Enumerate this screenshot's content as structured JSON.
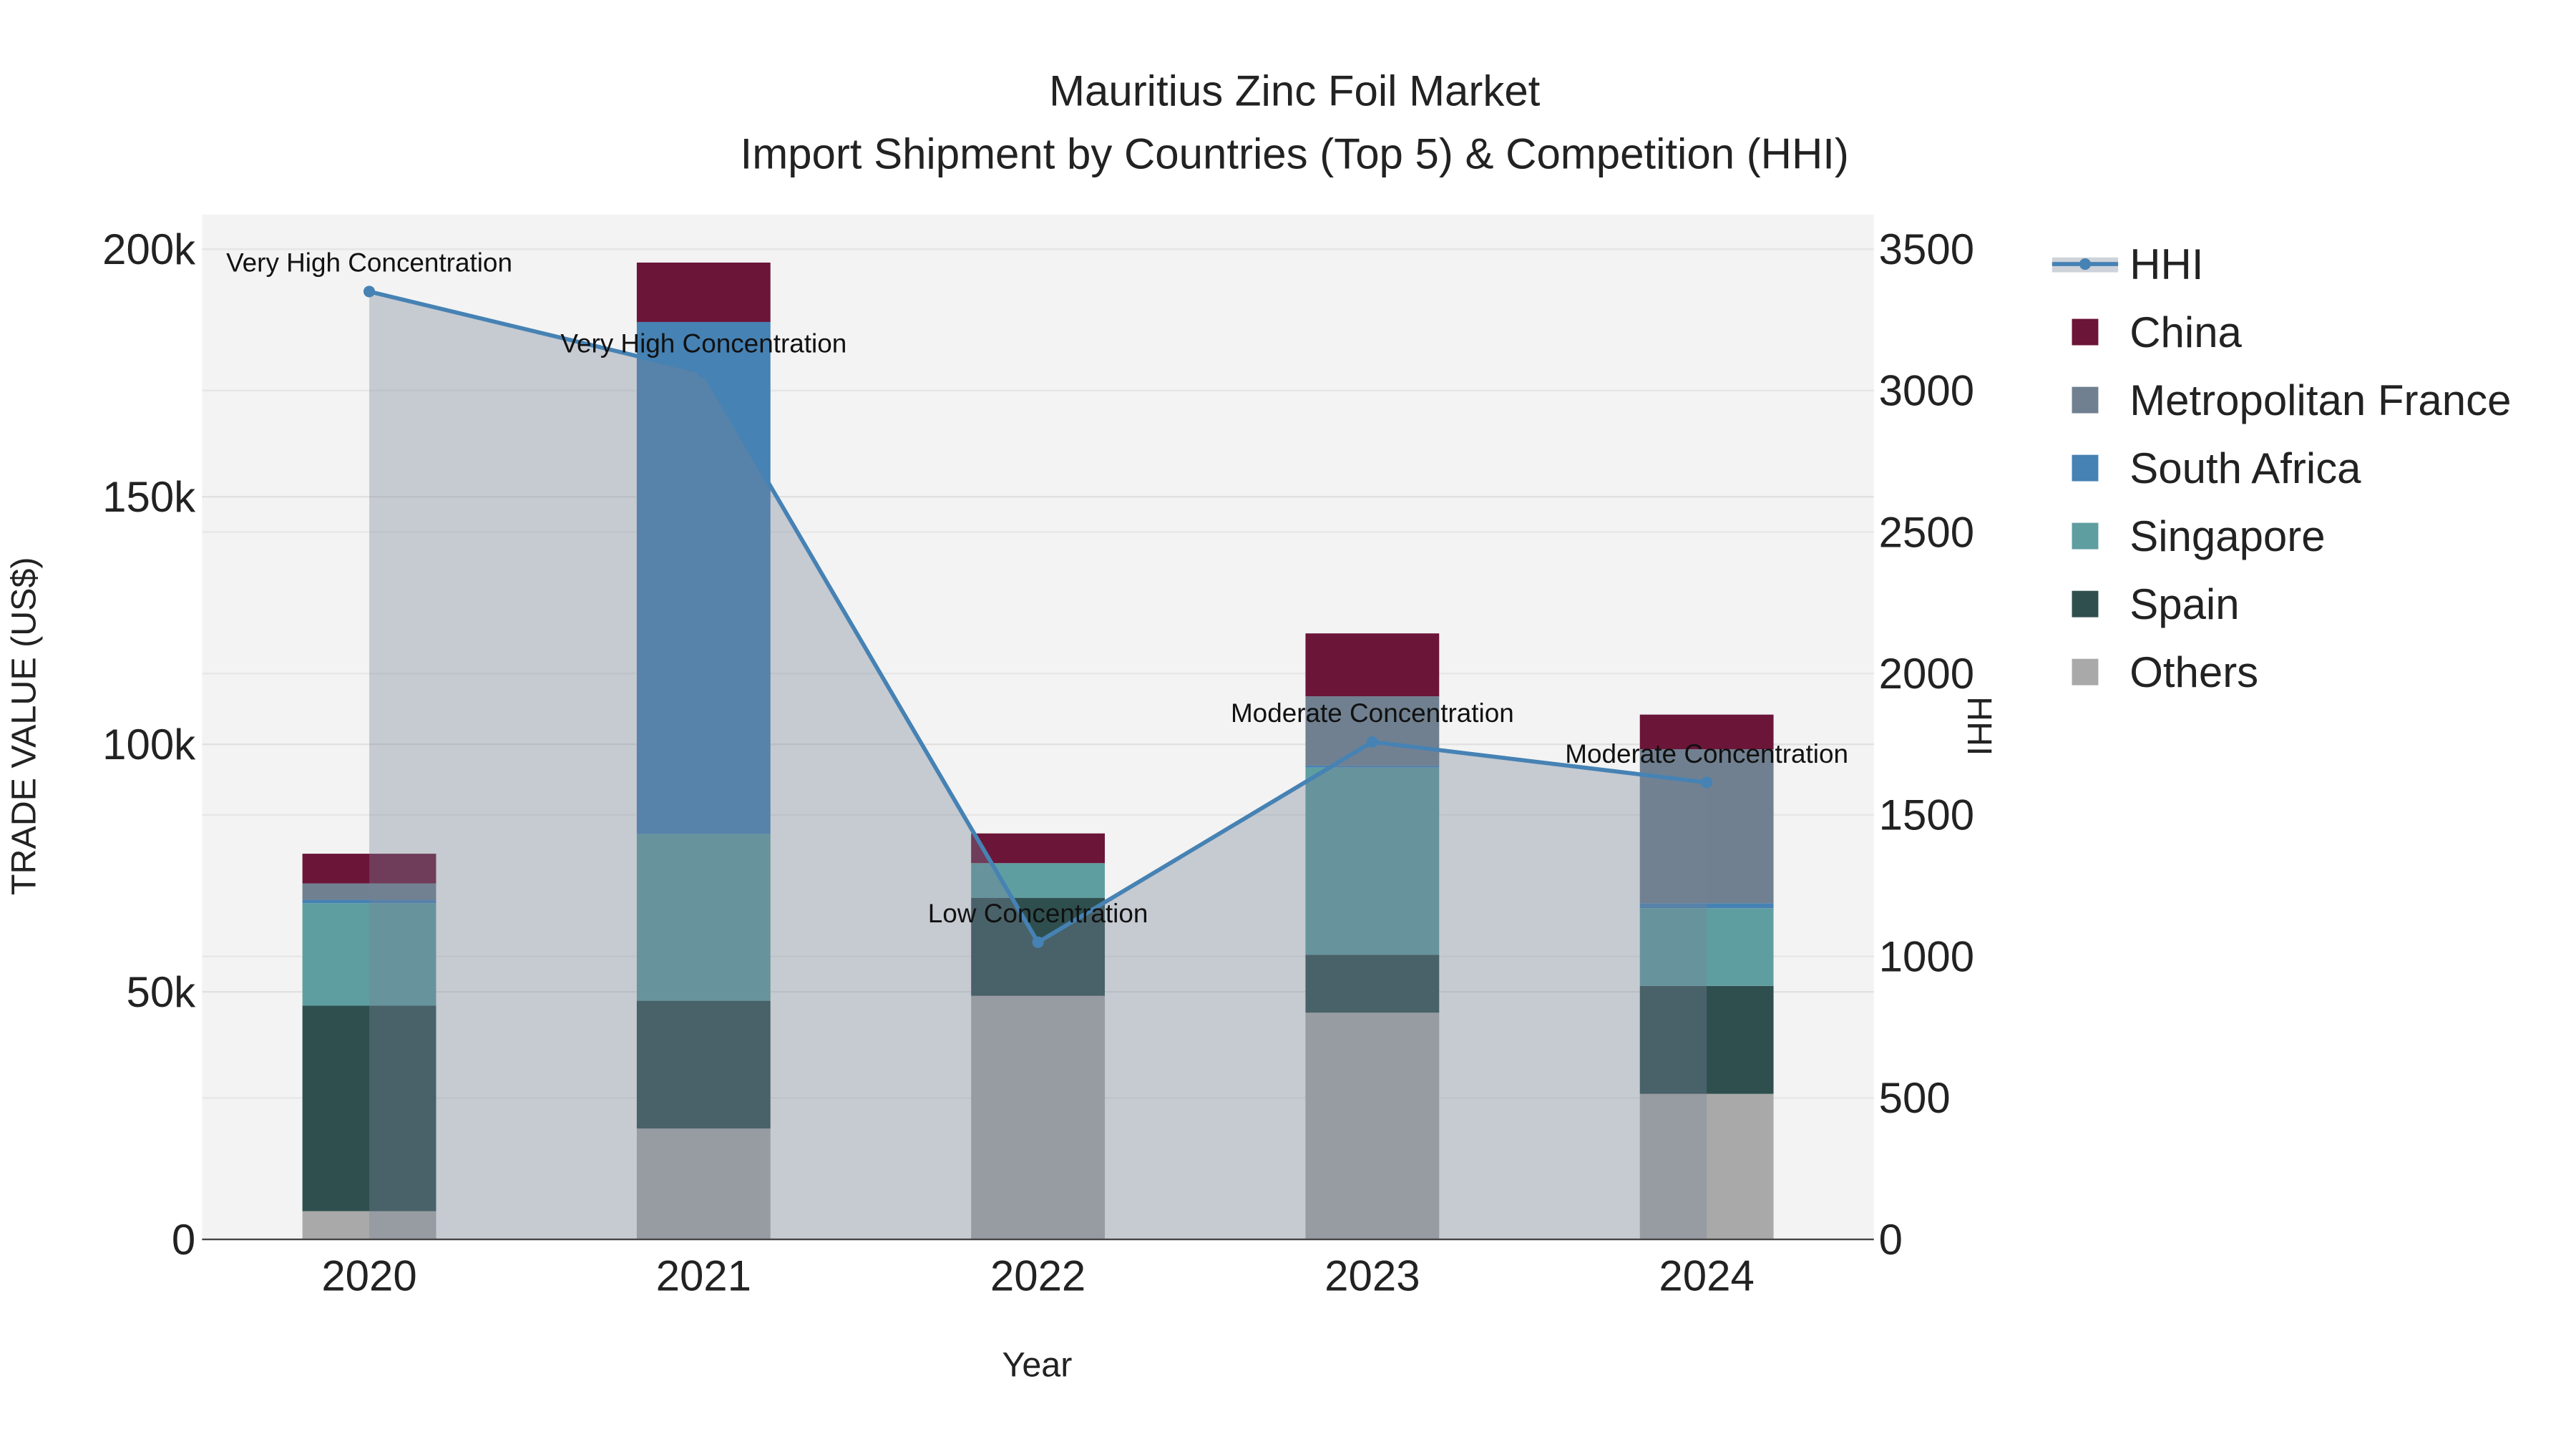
{
  "chart_data": {
    "type": "bar",
    "title": "Mauritius Zinc Foil Market",
    "subtitle": "Import Shipment by Countries (Top 5) & Competition (HHI)",
    "xlabel": "Year",
    "ylabel": "TRADE VALUE (US$)",
    "y2label": "HHI",
    "ylim": [
      0,
      207000
    ],
    "y2lim": [
      0,
      3622
    ],
    "yticks": [
      0,
      50000,
      100000,
      150000,
      200000
    ],
    "ytick_labels": [
      "0",
      "50k",
      "100k",
      "150k",
      "200k"
    ],
    "y2ticks": [
      0,
      500,
      1000,
      1500,
      2000,
      2500,
      3000,
      3500
    ],
    "y2tick_labels": [
      "0",
      "500",
      "1000",
      "1500",
      "2000",
      "2500",
      "3000",
      "3500"
    ],
    "categories": [
      "2020",
      "2021",
      "2022",
      "2023",
      "2024"
    ],
    "barmode": "stack",
    "legend_position": "right",
    "series": [
      {
        "name": "Others",
        "color": "#a9a9a9",
        "values": [
          5700,
          22400,
          49200,
          45800,
          29400
        ]
      },
      {
        "name": "Spain",
        "color": "#2f4f4f",
        "values": [
          41500,
          25800,
          19800,
          11700,
          21800
        ]
      },
      {
        "name": "Singapore",
        "color": "#5f9ea0",
        "values": [
          20700,
          33700,
          7000,
          37800,
          15700
        ]
      },
      {
        "name": "South Africa",
        "color": "#4682b4",
        "values": [
          700,
          103400,
          0,
          400,
          1000
        ]
      },
      {
        "name": "Metropolitan France",
        "color": "#708090",
        "values": [
          3300,
          0,
          0,
          14000,
          31100
        ]
      },
      {
        "name": "China",
        "color": "#6b1539",
        "values": [
          6000,
          12000,
          6000,
          12700,
          7000
        ]
      }
    ],
    "hhi": {
      "name": "HHI",
      "color": "#4682b4",
      "values": [
        3350,
        3065,
        1050,
        1758,
        1615
      ],
      "annotations": [
        "Very High Concentration",
        "Very High Concentration",
        "Low Concentration",
        "Moderate Concentration",
        "Moderate Concentration"
      ]
    },
    "legend_order": [
      "HHI",
      "China",
      "Metropolitan France",
      "South Africa",
      "Singapore",
      "Spain",
      "Others"
    ]
  }
}
